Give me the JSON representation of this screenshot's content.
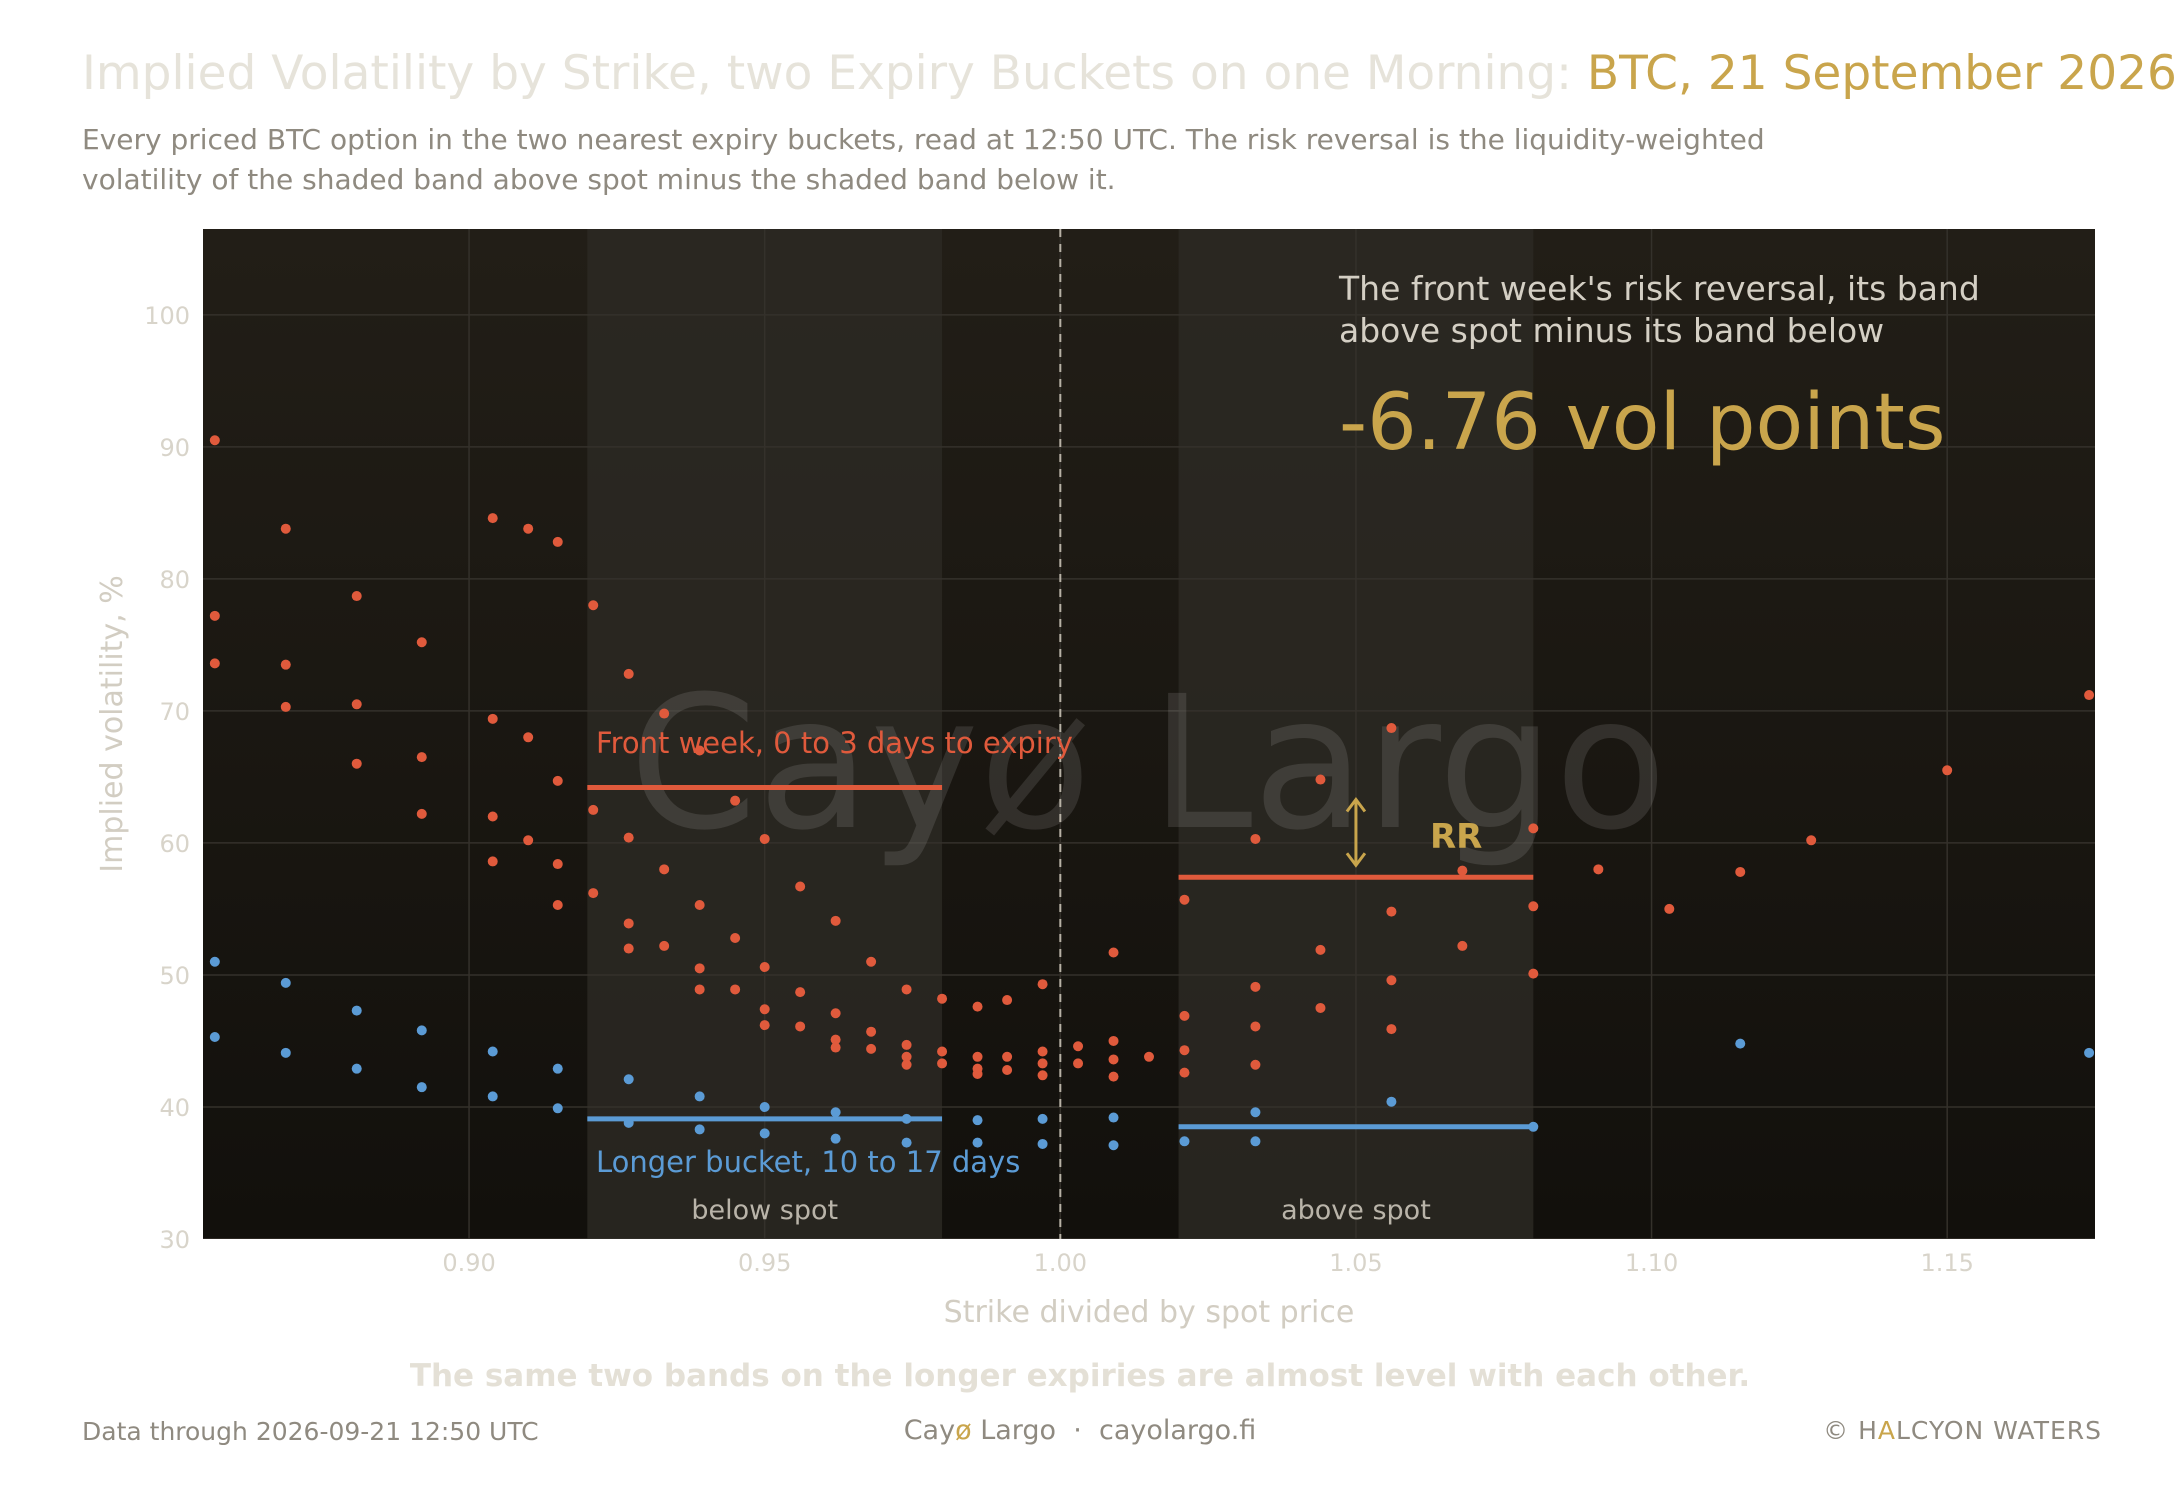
{
  "header": {
    "title_main": "Implied Volatility by Strike, two Expiry Buckets on one Morning: ",
    "title_highlight": "BTC, 21 September 2026",
    "subtitle": "Every priced BTC option in the two nearest expiry buckets, read at 12:50 UTC. The risk reversal is the liquidity-weighted volatility of the shaded band above spot minus the shaded band below it."
  },
  "chart_data": {
    "type": "scatter",
    "xlabel": "Strike divided by spot price",
    "ylabel": "Implied volatility, %",
    "xlim": [
      0.855,
      1.175
    ],
    "ylim": [
      30,
      106.5
    ],
    "x_ticks": [
      0.9,
      0.95,
      1.0,
      1.05,
      1.1,
      1.15
    ],
    "x_tick_labels": [
      "0.90",
      "0.95",
      "1.00",
      "1.05",
      "1.10",
      "1.15"
    ],
    "y_ticks": [
      30,
      40,
      50,
      60,
      70,
      80,
      90,
      100
    ],
    "y_tick_labels": [
      "30",
      "40",
      "50",
      "60",
      "70",
      "80",
      "90",
      "100"
    ],
    "grid": true,
    "spot_line_x": 1.0,
    "watermark": "Cayø Largo",
    "bands": [
      {
        "label": "below spot",
        "x0": 0.92,
        "x1": 0.98
      },
      {
        "label": "above spot",
        "x0": 1.02,
        "x1": 1.08
      }
    ],
    "series": [
      {
        "name": "Front week, 0 to 3 days to expiry",
        "color": "#e05a3c",
        "band_means": [
          {
            "x0": 0.92,
            "x1": 0.98,
            "y": 64.2
          },
          {
            "x0": 1.02,
            "x1": 1.08,
            "y": 57.4
          }
        ],
        "points": [
          [
            0.857,
            90.5
          ],
          [
            0.857,
            77.2
          ],
          [
            0.857,
            73.6
          ],
          [
            0.869,
            83.8
          ],
          [
            0.869,
            73.5
          ],
          [
            0.869,
            70.3
          ],
          [
            0.881,
            78.7
          ],
          [
            0.881,
            70.5
          ],
          [
            0.881,
            66.0
          ],
          [
            0.892,
            75.2
          ],
          [
            0.892,
            66.5
          ],
          [
            0.892,
            62.2
          ],
          [
            0.904,
            84.6
          ],
          [
            0.904,
            69.4
          ],
          [
            0.904,
            62.0
          ],
          [
            0.904,
            58.6
          ],
          [
            0.91,
            83.8
          ],
          [
            0.91,
            68.0
          ],
          [
            0.91,
            60.2
          ],
          [
            0.915,
            82.8
          ],
          [
            0.915,
            64.7
          ],
          [
            0.915,
            58.4
          ],
          [
            0.915,
            55.3
          ],
          [
            0.921,
            78.0
          ],
          [
            0.921,
            62.5
          ],
          [
            0.921,
            56.2
          ],
          [
            0.927,
            72.8
          ],
          [
            0.927,
            60.4
          ],
          [
            0.927,
            53.9
          ],
          [
            0.927,
            52.0
          ],
          [
            0.933,
            69.8
          ],
          [
            0.933,
            58.0
          ],
          [
            0.933,
            52.2
          ],
          [
            0.939,
            67.0
          ],
          [
            0.939,
            55.3
          ],
          [
            0.939,
            50.5
          ],
          [
            0.939,
            48.9
          ],
          [
            0.945,
            63.2
          ],
          [
            0.945,
            52.8
          ],
          [
            0.945,
            48.9
          ],
          [
            0.95,
            60.3
          ],
          [
            0.95,
            50.6
          ],
          [
            0.95,
            47.4
          ],
          [
            0.95,
            46.2
          ],
          [
            0.956,
            56.7
          ],
          [
            0.956,
            48.7
          ],
          [
            0.956,
            46.1
          ],
          [
            0.962,
            54.1
          ],
          [
            0.962,
            47.1
          ],
          [
            0.962,
            45.1
          ],
          [
            0.962,
            44.5
          ],
          [
            0.968,
            51.0
          ],
          [
            0.968,
            45.7
          ],
          [
            0.968,
            44.4
          ],
          [
            0.974,
            48.9
          ],
          [
            0.974,
            44.7
          ],
          [
            0.974,
            43.8
          ],
          [
            0.974,
            43.2
          ],
          [
            0.98,
            48.2
          ],
          [
            0.98,
            44.2
          ],
          [
            0.98,
            43.3
          ],
          [
            0.986,
            47.6
          ],
          [
            0.986,
            43.8
          ],
          [
            0.986,
            42.9
          ],
          [
            0.986,
            42.5
          ],
          [
            0.991,
            48.1
          ],
          [
            0.991,
            43.8
          ],
          [
            0.991,
            42.8
          ],
          [
            0.997,
            49.3
          ],
          [
            0.997,
            44.2
          ],
          [
            0.997,
            43.3
          ],
          [
            0.997,
            42.4
          ],
          [
            1.003,
            44.6
          ],
          [
            1.003,
            43.3
          ],
          [
            1.009,
            51.7
          ],
          [
            1.009,
            45.0
          ],
          [
            1.009,
            43.6
          ],
          [
            1.009,
            42.3
          ],
          [
            1.015,
            43.8
          ],
          [
            1.021,
            55.7
          ],
          [
            1.021,
            46.9
          ],
          [
            1.021,
            44.3
          ],
          [
            1.021,
            42.6
          ],
          [
            1.033,
            60.3
          ],
          [
            1.033,
            49.1
          ],
          [
            1.033,
            46.1
          ],
          [
            1.033,
            43.2
          ],
          [
            1.044,
            64.8
          ],
          [
            1.044,
            51.9
          ],
          [
            1.044,
            47.5
          ],
          [
            1.056,
            68.7
          ],
          [
            1.056,
            54.8
          ],
          [
            1.056,
            49.6
          ],
          [
            1.056,
            45.9
          ],
          [
            1.068,
            57.9
          ],
          [
            1.068,
            52.2
          ],
          [
            1.08,
            61.1
          ],
          [
            1.08,
            55.2
          ],
          [
            1.08,
            50.1
          ],
          [
            1.091,
            58.0
          ],
          [
            1.103,
            55.0
          ],
          [
            1.115,
            57.8
          ],
          [
            1.127,
            60.2
          ],
          [
            1.15,
            65.5
          ],
          [
            1.174,
            71.2
          ]
        ]
      },
      {
        "name": "Longer bucket, 10 to 17 days",
        "color": "#5b9bd5",
        "band_means": [
          {
            "x0": 0.92,
            "x1": 0.98,
            "y": 39.1
          },
          {
            "x0": 1.02,
            "x1": 1.08,
            "y": 38.5
          }
        ],
        "points": [
          [
            0.857,
            51.0
          ],
          [
            0.857,
            45.3
          ],
          [
            0.869,
            49.4
          ],
          [
            0.869,
            44.1
          ],
          [
            0.881,
            47.3
          ],
          [
            0.881,
            42.9
          ],
          [
            0.892,
            45.8
          ],
          [
            0.892,
            41.5
          ],
          [
            0.904,
            44.2
          ],
          [
            0.904,
            40.8
          ],
          [
            0.915,
            42.9
          ],
          [
            0.915,
            39.9
          ],
          [
            0.927,
            42.1
          ],
          [
            0.927,
            38.8
          ],
          [
            0.939,
            40.8
          ],
          [
            0.939,
            38.3
          ],
          [
            0.95,
            40.0
          ],
          [
            0.95,
            38.0
          ],
          [
            0.962,
            39.6
          ],
          [
            0.962,
            37.6
          ],
          [
            0.974,
            39.1
          ],
          [
            0.974,
            37.3
          ],
          [
            0.986,
            39.0
          ],
          [
            0.986,
            37.3
          ],
          [
            0.997,
            39.1
          ],
          [
            0.997,
            37.2
          ],
          [
            1.009,
            39.2
          ],
          [
            1.009,
            37.1
          ],
          [
            1.021,
            37.4
          ],
          [
            1.033,
            39.6
          ],
          [
            1.033,
            37.4
          ],
          [
            1.056,
            40.4
          ],
          [
            1.08,
            38.5
          ],
          [
            1.115,
            44.8
          ],
          [
            1.174,
            44.1
          ]
        ]
      }
    ],
    "annotations": {
      "rr_label": "RR",
      "callout_text": "The front week's risk reversal, its band above spot minus its band below",
      "callout_value": "-6.76 vol points",
      "callout_line1": "The front week's risk reversal, its band",
      "callout_line2": "above spot minus its band below"
    }
  },
  "footer": {
    "takeaway": "The same two bands on the longer expiries are almost level with each other.",
    "data_through": "Data through 2026-09-21 12:50 UTC",
    "brand_pre": "Cay",
    "brand_o": "ø",
    "brand_post": " Largo  ·  cayolargo.fi",
    "copyright_pre": "© H",
    "copyright_a": "A",
    "copyright_post": "LCYON WATERS"
  },
  "colors": {
    "plot_bg": "#1c1913",
    "band_fill": "#2c2923",
    "grid": "#34312b",
    "front": "#e05a3c",
    "longer": "#5b9bd5",
    "accent": "#c9a54c",
    "axis_text": "#d8d4ca"
  }
}
